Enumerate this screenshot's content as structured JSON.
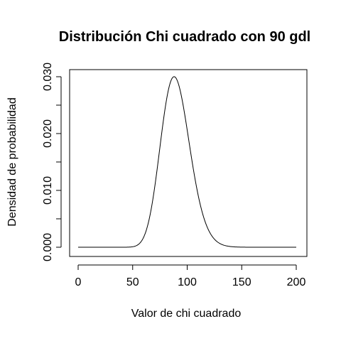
{
  "chart_data": {
    "type": "line",
    "title": "Distribución Chi cuadrado con 90 gdl",
    "xlabel": "Valor de chi cuadrado",
    "ylabel": "Densidad de probabilidad",
    "xlim": [
      0,
      200
    ],
    "ylim": [
      0,
      0.03
    ],
    "x_ticks": [
      0,
      50,
      100,
      150,
      200
    ],
    "x_tick_labels": [
      "0",
      "50",
      "100",
      "150",
      "200"
    ],
    "y_ticks": [
      0,
      0.005,
      0.01,
      0.015,
      0.02,
      0.025,
      0.03
    ],
    "y_tick_labels": [
      "0.000",
      "",
      "0.010",
      "",
      "0.020",
      "",
      "0.030"
    ],
    "grid": false,
    "legend": "none",
    "series": [
      {
        "distribution": "chi-squared",
        "degrees_of_freedom": 90,
        "x_range": [
          0,
          200
        ]
      }
    ]
  }
}
